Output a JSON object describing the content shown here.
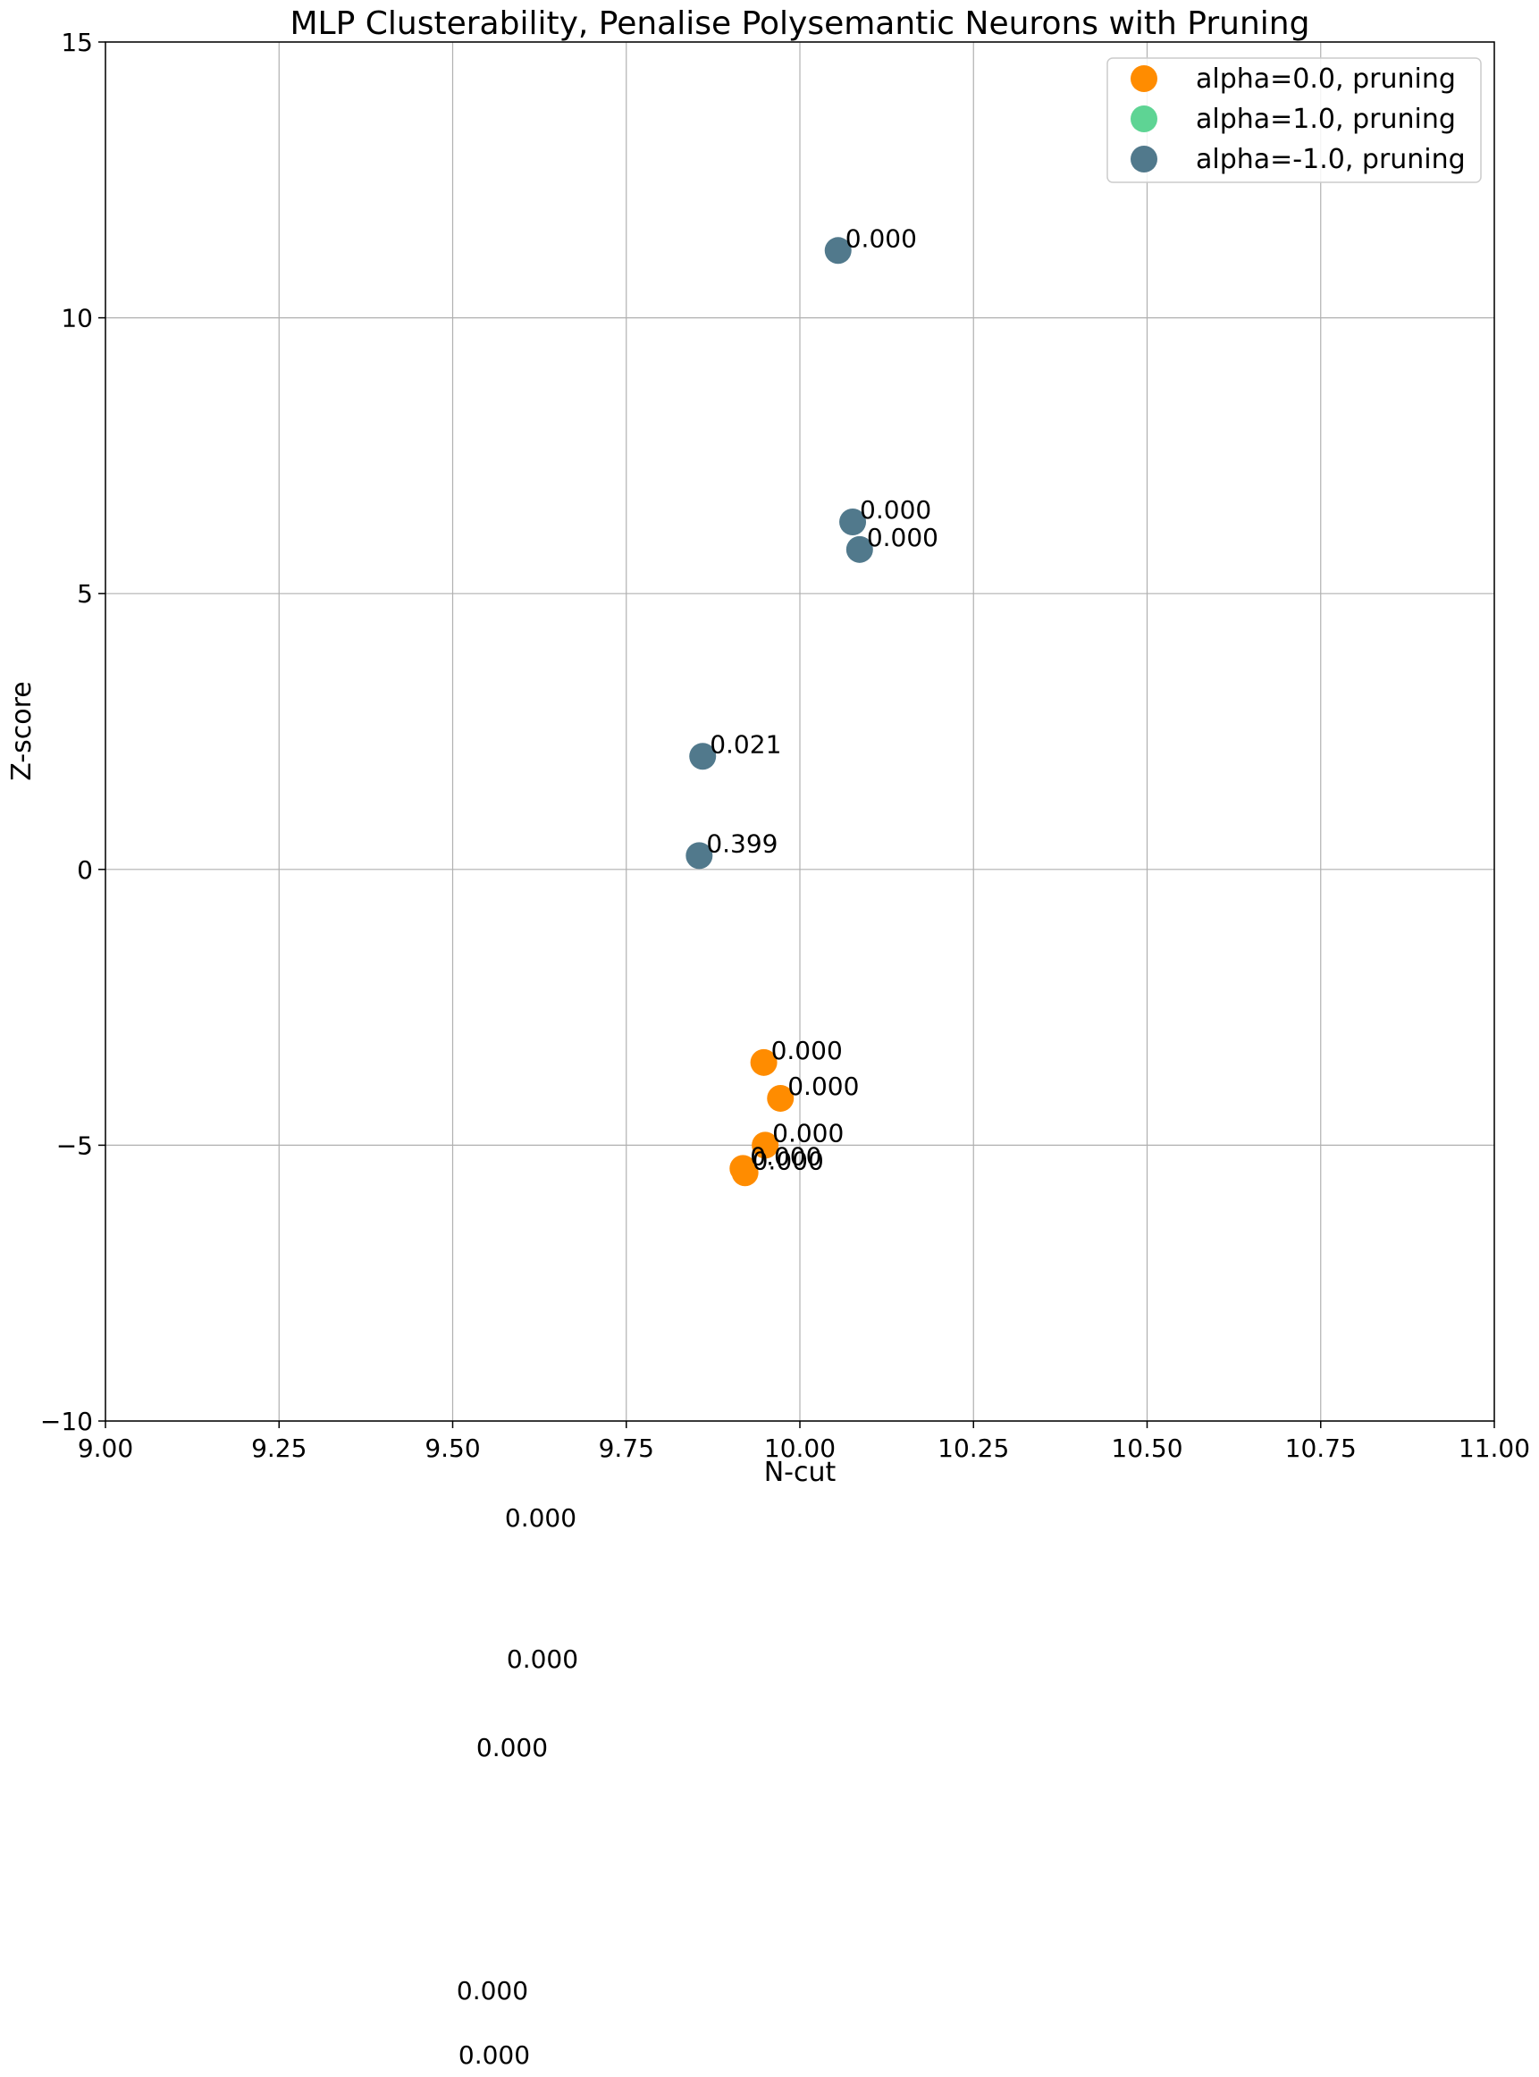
{
  "chart_data": {
    "type": "scatter",
    "title": "MLP Clusterability, Penalise Polysemantic Neurons with Pruning",
    "xlabel": "N-cut",
    "ylabel": "Z-score",
    "xlim": [
      9.0,
      11.0
    ],
    "ylim": [
      -10,
      15
    ],
    "x_ticks": [
      "9.00",
      "9.25",
      "9.50",
      "9.75",
      "10.00",
      "10.25",
      "10.50",
      "10.75",
      "11.00"
    ],
    "y_ticks": [
      "15",
      "10",
      "5",
      "0",
      "−5",
      "−10"
    ],
    "grid": true,
    "legend_position": "top-right",
    "series": [
      {
        "name": "alpha=0.0, pruning",
        "color": "#ff8c00",
        "points": [
          {
            "x": 9.948,
            "y": -3.5,
            "label": "0.000"
          },
          {
            "x": 9.972,
            "y": -4.15,
            "label": "0.000"
          },
          {
            "x": 9.95,
            "y": -5.0,
            "label": "0.000"
          },
          {
            "x": 9.918,
            "y": -5.42,
            "label": "0.000"
          },
          {
            "x": 9.921,
            "y": -5.5,
            "label": "0.000"
          }
        ]
      },
      {
        "name": "alpha=1.0, pruning",
        "color": "#5ed494",
        "points": []
      },
      {
        "name": "alpha=-1.0, pruning",
        "color": "#51798c",
        "points": [
          {
            "x": 10.055,
            "y": 11.22,
            "label": "0.000"
          },
          {
            "x": 10.076,
            "y": 6.3,
            "label": "0.000"
          },
          {
            "x": 10.086,
            "y": 5.8,
            "label": "0.000"
          },
          {
            "x": 9.86,
            "y": 2.05,
            "label": "0.021"
          },
          {
            "x": 9.855,
            "y": 0.25,
            "label": "0.399"
          }
        ]
      }
    ],
    "annotations": [
      "0.000",
      "0.000",
      "0.000",
      "0.000",
      "0.000"
    ]
  }
}
